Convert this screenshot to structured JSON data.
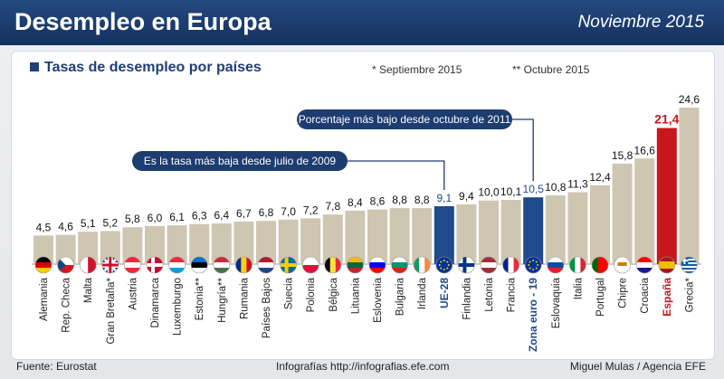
{
  "header": {
    "title": "Desempleo en Europa",
    "date": "Noviembre 2015"
  },
  "subtitle": "Tasas de desempleo por países",
  "notes": {
    "star": "* Septiembre 2015",
    "double_star": "** Octubre 2015"
  },
  "footer": {
    "source": "Fuente: Eurostat",
    "credit": "Infografías http://infografias.efe.com",
    "author": "Miguel Mulas / Agencia EFE"
  },
  "colors": {
    "bar": "#cfc6b1",
    "highlight": "#1f4a8c",
    "spain": "#c8161d",
    "label_blue": "#1f4a8c"
  },
  "chart_data": {
    "type": "bar",
    "categories": [
      "Alemania",
      "Rep. Checa",
      "Malta",
      "Gran Bretaña*",
      "Austria",
      "Dinamarca",
      "Luxemburgo",
      "Estonia**",
      "Hungría**",
      "Rumania",
      "Países Bajos",
      "Suecia",
      "Polonia",
      "Bélgica",
      "Lituania",
      "Eslovenia",
      "Bulgaria",
      "Irlanda",
      "UE-28",
      "Finlandia",
      "Letonia",
      "Francia",
      "Zona euro - 19",
      "Eslovaquia",
      "Italia",
      "Portugal",
      "Chipre",
      "Croacia",
      "España",
      "Grecia*"
    ],
    "values": [
      4.5,
      4.6,
      5.1,
      5.2,
      5.8,
      6.0,
      6.1,
      6.3,
      6.4,
      6.7,
      6.8,
      7.0,
      7.2,
      7.8,
      8.4,
      8.6,
      8.8,
      8.8,
      9.1,
      9.4,
      10.0,
      10.1,
      10.5,
      10.8,
      11.3,
      12.4,
      15.8,
      16.6,
      21.4,
      24.6
    ],
    "value_labels": [
      "4,5",
      "4,6",
      "5,1",
      "5,2",
      "5,8",
      "6,0",
      "6,1",
      "6,3",
      "6,4",
      "6,7",
      "6,8",
      "7,0",
      "7,2",
      "7,8",
      "8,4",
      "8,6",
      "8,8",
      "8,8",
      "9,1",
      "9,4",
      "10,0",
      "10,1",
      "10,5",
      "10,8",
      "11,3",
      "12,4",
      "15,8",
      "16,6",
      "21,4",
      "24,6"
    ],
    "highlight": [
      "UE-28",
      "Zona euro - 19"
    ],
    "emphasis": "España",
    "ylim": [
      0,
      25
    ],
    "annotations": [
      {
        "target": "UE-28",
        "text": "Es la tasa más baja desde julio de 2009"
      },
      {
        "target": "Zona euro - 19",
        "text": "Porcentaje más bajo desde octubre de 2011"
      }
    ],
    "flags": [
      [
        "#000000",
        "#dd0000",
        "#ffce00",
        "h"
      ],
      [
        "#ffffff",
        "#d7141a",
        "#11457e",
        "cz"
      ],
      [
        "#ffffff",
        "#cf142b",
        "",
        "v2"
      ],
      [
        "#012169",
        "#ffffff",
        "#c8102e",
        "uk"
      ],
      [
        "#ed2939",
        "#ffffff",
        "#ed2939",
        "h"
      ],
      [
        "#c60c30",
        "#ffffff",
        "",
        "nordic"
      ],
      [
        "#ed2939",
        "#ffffff",
        "#00a1de",
        "h"
      ],
      [
        "#0072ce",
        "#000000",
        "#ffffff",
        "h"
      ],
      [
        "#ce2939",
        "#ffffff",
        "#477050",
        "h"
      ],
      [
        "#002b7f",
        "#fcd116",
        "#ce1126",
        "v"
      ],
      [
        "#ae1c28",
        "#ffffff",
        "#21468b",
        "h"
      ],
      [
        "#006aa7",
        "#fecc00",
        "",
        "nordic"
      ],
      [
        "#ffffff",
        "#dc143c",
        "",
        "h2"
      ],
      [
        "#000000",
        "#fae042",
        "#ed2939",
        "v"
      ],
      [
        "#fdb913",
        "#006a44",
        "#c1272d",
        "h"
      ],
      [
        "#ffffff",
        "#0000ff",
        "#ff0000",
        "h"
      ],
      [
        "#ffffff",
        "#00966e",
        "#d62612",
        "h"
      ],
      [
        "#169b62",
        "#ffffff",
        "#ff883e",
        "v"
      ],
      [
        "#003399",
        "#ffcc00",
        "",
        "eu"
      ],
      [
        "#ffffff",
        "#003580",
        "",
        "nordic"
      ],
      [
        "#9e3039",
        "#ffffff",
        "#9e3039",
        "h"
      ],
      [
        "#002395",
        "#ffffff",
        "#ed2939",
        "v"
      ],
      [
        "#003399",
        "#ffcc00",
        "",
        "eu"
      ],
      [
        "#ffffff",
        "#0b4ea2",
        "#ee1c25",
        "h"
      ],
      [
        "#009246",
        "#ffffff",
        "#ce2b37",
        "v"
      ],
      [
        "#006600",
        "#ff0000",
        "",
        "pt"
      ],
      [
        "#ffffff",
        "#d57800",
        "",
        "cy"
      ],
      [
        "#ff0000",
        "#ffffff",
        "#171796",
        "h"
      ],
      [
        "#aa151b",
        "#f1bf00",
        "#aa151b",
        "es"
      ],
      [
        "#0d5eaf",
        "#ffffff",
        "",
        "gr"
      ]
    ]
  }
}
